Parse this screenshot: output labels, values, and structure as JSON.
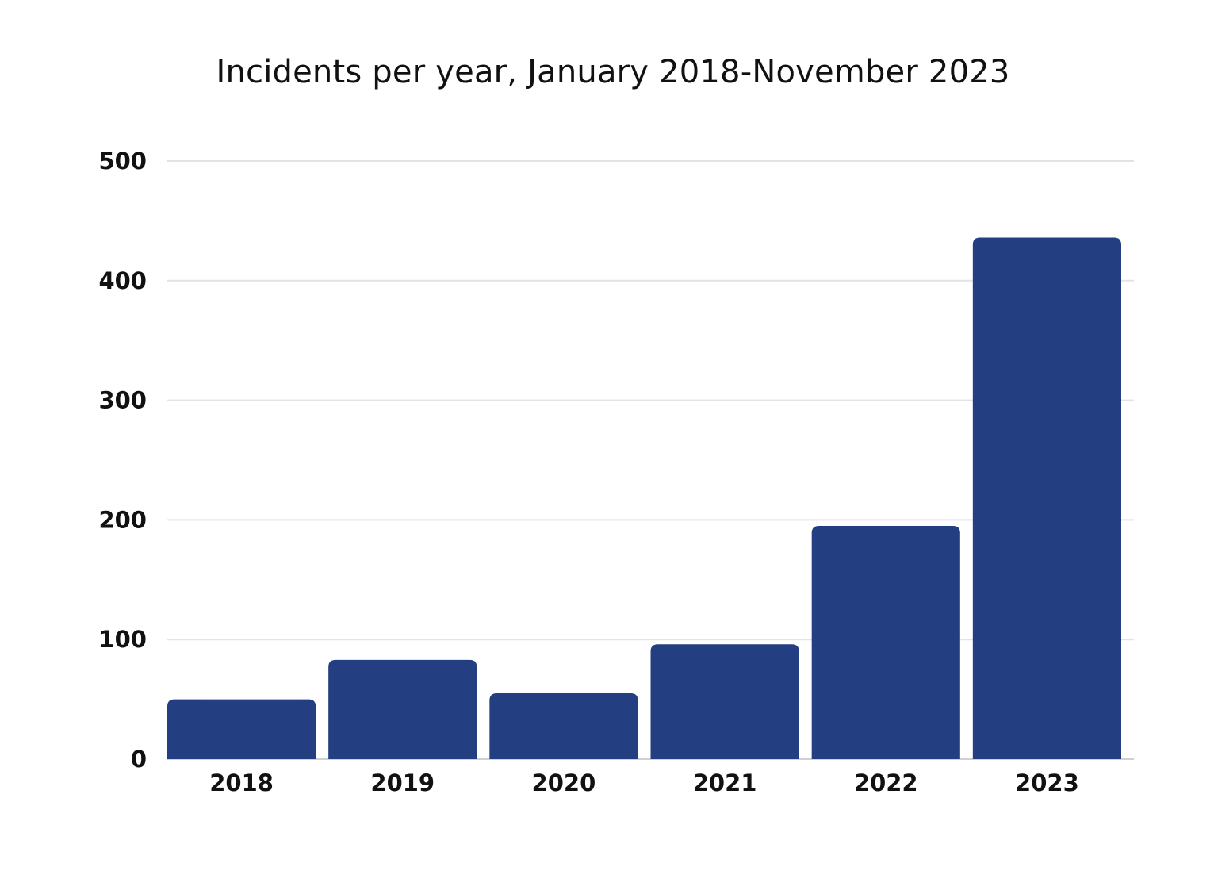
{
  "chart_data": {
    "type": "bar",
    "title": "Incidents per year, January 2018-November 2023",
    "categories": [
      "2018",
      "2019",
      "2020",
      "2021",
      "2022",
      "2023"
    ],
    "values": [
      50,
      83,
      55,
      96,
      195,
      436
    ],
    "ylim": [
      0,
      500
    ],
    "yticks": [
      0,
      100,
      200,
      300,
      400,
      500
    ],
    "xlabel": "",
    "ylabel": "",
    "grid": true,
    "bar_color": "#233F82",
    "grid_color": "#e3e3e3"
  }
}
